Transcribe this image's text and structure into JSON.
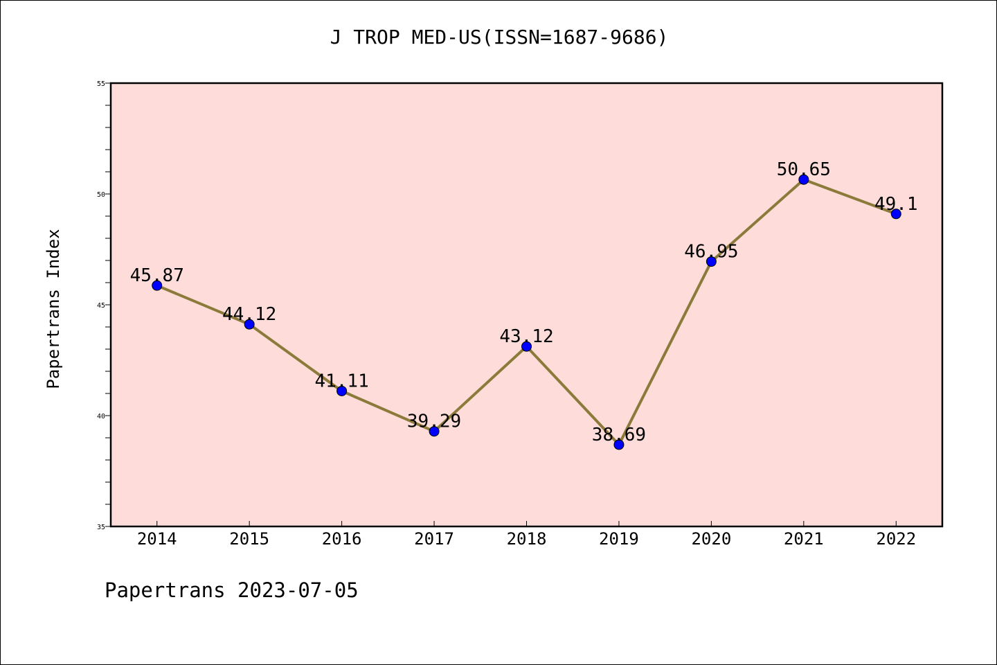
{
  "chart_data": {
    "type": "line",
    "title": "J TROP MED-US(ISSN=1687-9686)",
    "xlabel": "",
    "ylabel": "Papertrans Index",
    "categories": [
      "2014",
      "2015",
      "2016",
      "2017",
      "2018",
      "2019",
      "2020",
      "2021",
      "2022"
    ],
    "series": [
      {
        "values": [
          45.87,
          44.12,
          41.11,
          39.29,
          43.12,
          38.69,
          46.95,
          50.65,
          49.1
        ],
        "labels": [
          "45.87",
          "44.12",
          "41.11",
          "39.29",
          "43.12",
          "38.69",
          "46.95",
          "50.65",
          "49.1"
        ]
      }
    ],
    "ylim": [
      35,
      55
    ],
    "yticks": [
      "35",
      "40",
      "45",
      "50",
      "55"
    ],
    "grid": false,
    "legend": "none",
    "footer": "Papertrans 2023-07-05",
    "colors": {
      "plot_background": "#fddcd9",
      "line": "#8b7a3a",
      "marker": "#0000ff",
      "axis": "#000000"
    }
  }
}
